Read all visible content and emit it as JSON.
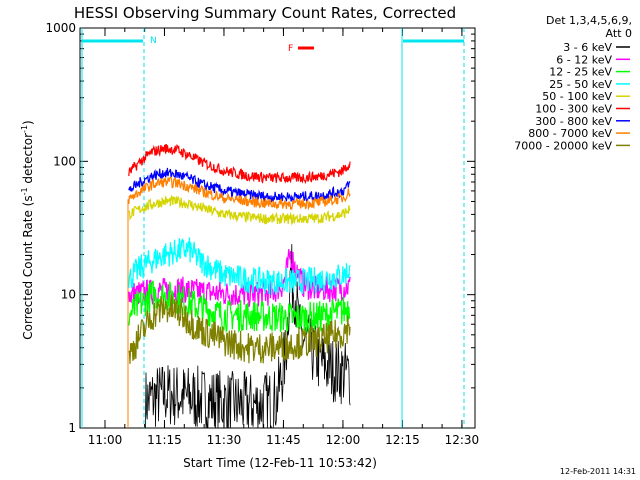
{
  "chart_data": {
    "type": "line",
    "title": "HESSI Observing Summary Count Rates, Corrected",
    "xlabel": "Start Time (12-Feb-11 10:53:42)",
    "ylabel_main": "Corrected Count Rate (s",
    "ylabel_exp1": "-1",
    "ylabel_mid": " detector",
    "ylabel_exp2": "-1",
    "ylabel_end": ")",
    "y_scale": "log",
    "ylim": [
      1,
      1000
    ],
    "xlim_minutes": [
      10.9,
      12.55
    ],
    "x_ticks": [
      {
        "label": "11:00",
        "hours": 11.0
      },
      {
        "label": "11:15",
        "hours": 11.25
      },
      {
        "label": "11:30",
        "hours": 11.5
      },
      {
        "label": "11:45",
        "hours": 11.75
      },
      {
        "label": "12:00",
        "hours": 12.0
      },
      {
        "label": "12:15",
        "hours": 12.25
      },
      {
        "label": "12:30",
        "hours": 12.5
      }
    ],
    "y_ticks": [
      {
        "label": "1",
        "value": 1
      },
      {
        "label": "10",
        "value": 10
      },
      {
        "label": "100",
        "value": 100
      },
      {
        "label": "1000",
        "value": 1000
      }
    ],
    "legend": {
      "header_line1": "Det 1,3,4,5,6,9,",
      "header_line2": "Att 0",
      "placement": "right"
    },
    "series": [
      {
        "name": "3 - 6 keV",
        "color": "#000000",
        "x": [
          11.17,
          11.25,
          11.35,
          11.45,
          11.55,
          11.65,
          11.72,
          11.76,
          11.78,
          11.8,
          11.82,
          11.86,
          11.9,
          11.95,
          12.03
        ],
        "y": [
          1.6,
          1.8,
          1.7,
          1.6,
          1.5,
          1.5,
          1.6,
          3.5,
          15,
          10,
          5,
          4,
          3.2,
          2.8,
          2.5
        ]
      },
      {
        "name": "6 - 12 keV",
        "color": "#ff00ff",
        "x": [
          11.1,
          11.2,
          11.3,
          11.4,
          11.5,
          11.6,
          11.7,
          11.75,
          11.78,
          11.8,
          11.83,
          11.88,
          11.95,
          12.03
        ],
        "y": [
          10,
          10.5,
          11,
          10.5,
          10.2,
          10,
          10.3,
          12,
          20,
          16,
          12,
          11,
          11,
          11.5
        ]
      },
      {
        "name": "12 - 25 keV",
        "color": "#00ff00",
        "x": [
          11.1,
          11.15,
          11.2,
          11.3,
          11.4,
          11.5,
          11.6,
          11.7,
          11.8,
          11.9,
          12.0,
          12.03
        ],
        "y": [
          7,
          8.5,
          10,
          9.5,
          8,
          7,
          7,
          6.8,
          6.7,
          6.8,
          7.5,
          8.5
        ]
      },
      {
        "name": "25 - 50 keV",
        "color": "#00ffff",
        "x": [
          11.1,
          11.15,
          11.2,
          11.25,
          11.3,
          11.35,
          11.4,
          11.5,
          11.6,
          11.7,
          11.8,
          11.9,
          12.0,
          12.03
        ],
        "y": [
          13,
          16,
          18,
          20,
          21,
          22,
          18,
          14,
          13,
          12.5,
          12.5,
          13,
          14,
          15.5
        ]
      },
      {
        "name": "50 - 100 keV",
        "color": "#d4d400",
        "x": [
          11.1,
          11.15,
          11.2,
          11.25,
          11.3,
          11.35,
          11.4,
          11.5,
          11.6,
          11.7,
          11.8,
          11.9,
          12.0,
          12.03
        ],
        "y": [
          40,
          44,
          48,
          50,
          50,
          48,
          45,
          40,
          38,
          37,
          37,
          37.5,
          40,
          44
        ]
      },
      {
        "name": "100 - 300 keV",
        "color": "#ff0000",
        "x": [
          11.1,
          11.15,
          11.2,
          11.25,
          11.3,
          11.35,
          11.4,
          11.5,
          11.6,
          11.7,
          11.8,
          11.9,
          12.0,
          12.03
        ],
        "y": [
          82,
          100,
          118,
          125,
          122,
          112,
          100,
          85,
          78,
          75,
          75,
          77,
          85,
          98
        ]
      },
      {
        "name": "300 - 800 keV",
        "color": "#0000ff",
        "x": [
          11.1,
          11.15,
          11.2,
          11.25,
          11.3,
          11.35,
          11.4,
          11.5,
          11.6,
          11.7,
          11.8,
          11.9,
          12.0,
          12.03
        ],
        "y": [
          60,
          70,
          78,
          82,
          80,
          75,
          68,
          60,
          56,
          54,
          54,
          55,
          60,
          68
        ]
      },
      {
        "name": "800 - 7000 keV",
        "color": "#ff8000",
        "x": [
          11.1,
          11.15,
          11.2,
          11.25,
          11.3,
          11.35,
          11.4,
          11.5,
          11.6,
          11.7,
          11.8,
          11.9,
          12.0,
          12.03
        ],
        "y": [
          52,
          60,
          67,
          70,
          69,
          65,
          60,
          53,
          50,
          48,
          48,
          49,
          53,
          60
        ]
      },
      {
        "name": "7000 - 20000 keV",
        "color": "#808000",
        "x": [
          11.1,
          11.15,
          11.2,
          11.25,
          11.3,
          11.35,
          11.4,
          11.5,
          11.6,
          11.7,
          11.8,
          11.9,
          12.0,
          12.03
        ],
        "y": [
          3.5,
          5,
          7,
          8,
          7.5,
          6.5,
          5.5,
          4.5,
          4,
          4,
          4.3,
          4.5,
          5.2,
          6
        ]
      }
    ],
    "annotations": {
      "night_label": "N",
      "flare_label": "F"
    },
    "timestamp": "12-Feb-2011 14:31"
  }
}
